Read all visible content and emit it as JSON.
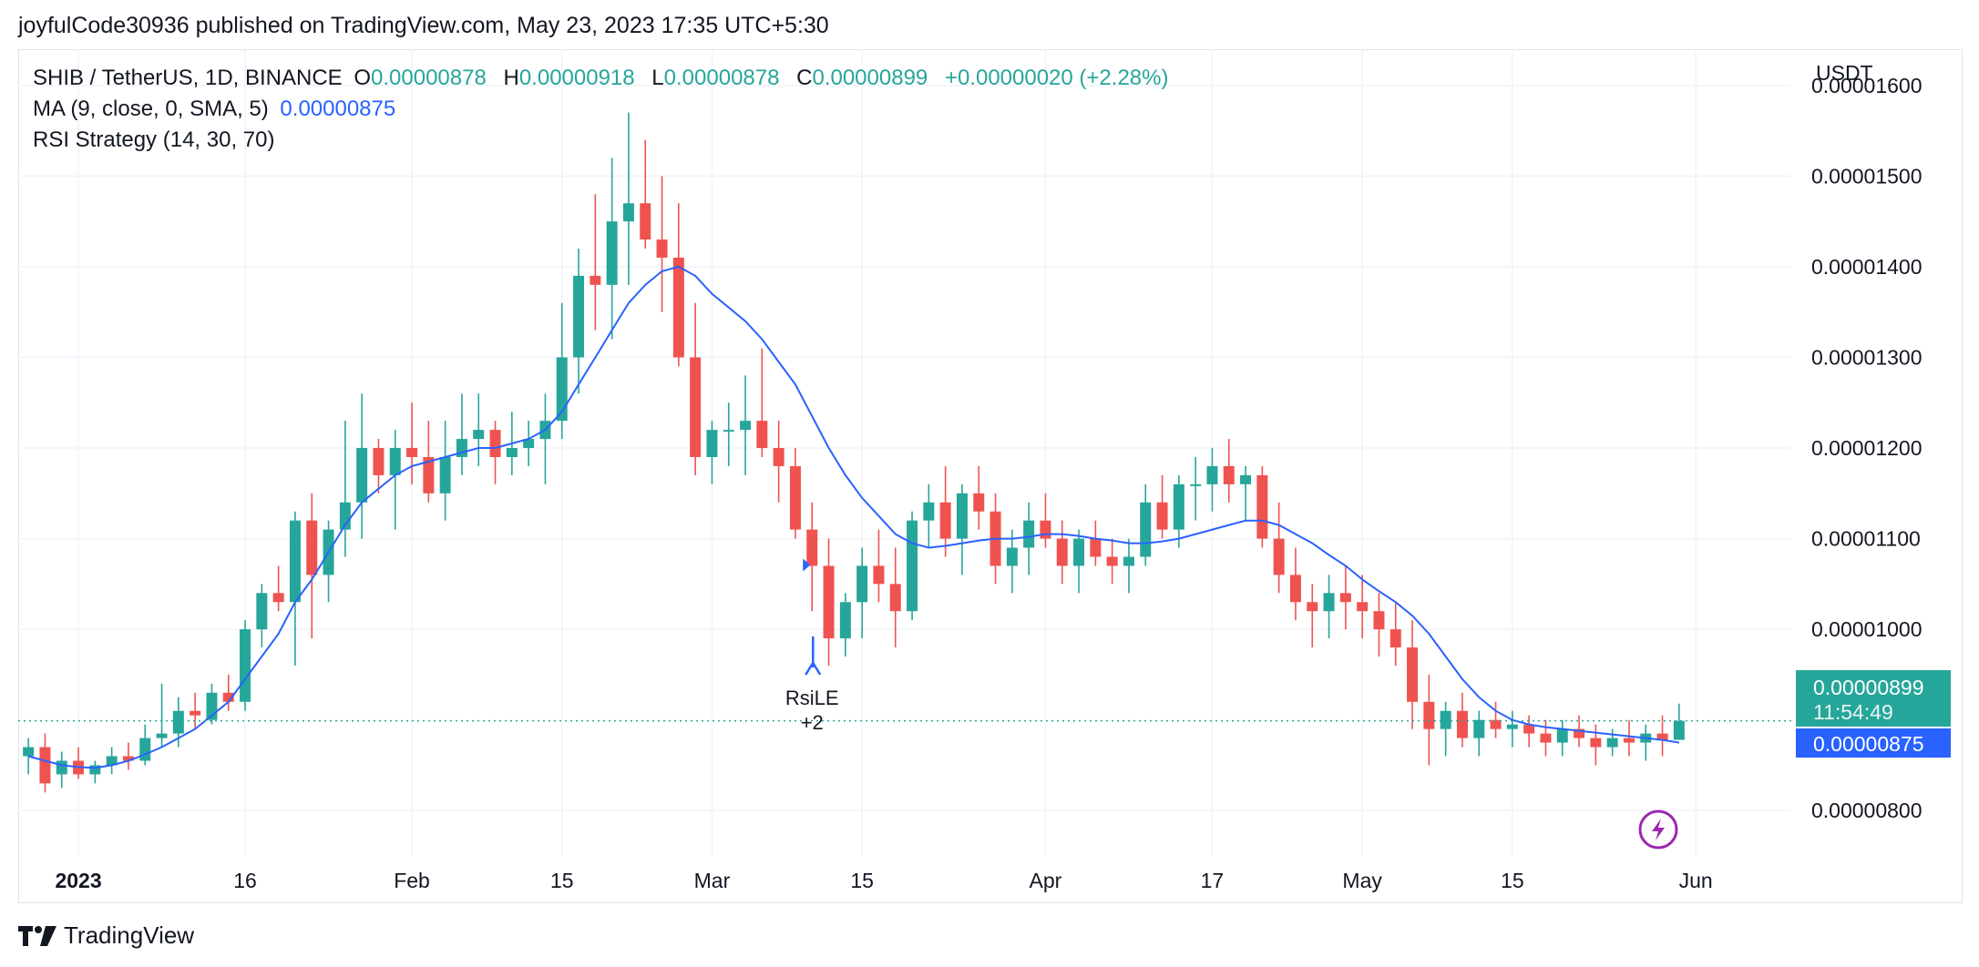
{
  "attribution": "joyfulCode30936 published on TradingView.com, May 23, 2023 17:35 UTC+5:30",
  "legend": {
    "symbol": "SHIB / TetherUS, 1D, BINANCE",
    "o_label": "O",
    "o_value": "0.00000878",
    "h_label": "H",
    "h_value": "0.00000918",
    "l_label": "L",
    "l_value": "0.00000878",
    "c_label": "C",
    "c_value": "0.00000899",
    "change": "+0.00000020 (+2.28%)",
    "ma_label": "MA (9, close, 0, SMA, 5)",
    "ma_value": "0.00000875",
    "strategy_label": "RSI Strategy (14, 30, 70)"
  },
  "footer_brand": "TradingView",
  "colors": {
    "up": "#26a69a",
    "down": "#ef5350",
    "ma": "#2962ff",
    "grid": "#f0f3fa"
  },
  "chart_data": {
    "type": "candlestick",
    "currency": "USDT",
    "ylim": [
      7.5e-06,
      1.64e-05
    ],
    "y_ticks": [
      "0.00001600",
      "0.00001500",
      "0.00001400",
      "0.00001300",
      "0.00001200",
      "0.00001100",
      "0.00001000",
      "0.00000800"
    ],
    "x_ticks": [
      {
        "label": "2023",
        "bold": true,
        "index": 3
      },
      {
        "label": "16",
        "index": 13
      },
      {
        "label": "Feb",
        "index": 23
      },
      {
        "label": "15",
        "index": 32
      },
      {
        "label": "Mar",
        "index": 41
      },
      {
        "label": "15",
        "index": 50
      },
      {
        "label": "Apr",
        "index": 61
      },
      {
        "label": "17",
        "index": 71
      },
      {
        "label": "May",
        "index": 80
      },
      {
        "label": "15",
        "index": 89
      },
      {
        "label": "Jun",
        "index": 100
      }
    ],
    "last_price_label": "0.00000899",
    "countdown": "11:54:49",
    "ma_last_label": "0.00000875",
    "last_price": 8.99e-06,
    "signal": {
      "index": 47,
      "label": "RsiLE",
      "qty": "+2",
      "price": 9.7e-06
    },
    "ohlc": [
      [
        8.6,
        8.8,
        8.4,
        8.7
      ],
      [
        8.7,
        8.85,
        8.2,
        8.3
      ],
      [
        8.4,
        8.65,
        8.25,
        8.55
      ],
      [
        8.55,
        8.7,
        8.35,
        8.4
      ],
      [
        8.4,
        8.55,
        8.3,
        8.5
      ],
      [
        8.5,
        8.7,
        8.4,
        8.6
      ],
      [
        8.6,
        8.75,
        8.45,
        8.55
      ],
      [
        8.55,
        8.95,
        8.5,
        8.8
      ],
      [
        8.8,
        9.4,
        8.7,
        8.85
      ],
      [
        8.85,
        9.25,
        8.7,
        9.1
      ],
      [
        9.1,
        9.3,
        8.9,
        9.05
      ],
      [
        9.0,
        9.4,
        8.95,
        9.3
      ],
      [
        9.3,
        9.5,
        9.1,
        9.2
      ],
      [
        9.2,
        10.1,
        9.1,
        10.0
      ],
      [
        10.0,
        10.5,
        9.8,
        10.4
      ],
      [
        10.4,
        10.7,
        10.2,
        10.3
      ],
      [
        10.3,
        11.3,
        9.6,
        11.2
      ],
      [
        11.2,
        11.5,
        9.9,
        10.6
      ],
      [
        10.6,
        11.2,
        10.3,
        11.1
      ],
      [
        11.1,
        12.3,
        10.8,
        11.4
      ],
      [
        11.4,
        12.6,
        11.0,
        12.0
      ],
      [
        12.0,
        12.1,
        11.5,
        11.7
      ],
      [
        11.7,
        12.2,
        11.1,
        12.0
      ],
      [
        12.0,
        12.5,
        11.6,
        11.9
      ],
      [
        11.9,
        12.3,
        11.4,
        11.5
      ],
      [
        11.5,
        12.3,
        11.2,
        11.9
      ],
      [
        11.9,
        12.6,
        11.7,
        12.1
      ],
      [
        12.1,
        12.6,
        11.8,
        12.2
      ],
      [
        12.2,
        12.3,
        11.6,
        11.9
      ],
      [
        11.9,
        12.4,
        11.7,
        12.0
      ],
      [
        12.0,
        12.3,
        11.8,
        12.1
      ],
      [
        12.1,
        12.6,
        11.6,
        12.3
      ],
      [
        12.3,
        13.6,
        12.1,
        13.0
      ],
      [
        13.0,
        14.2,
        12.6,
        13.9
      ],
      [
        13.9,
        14.8,
        13.3,
        13.8
      ],
      [
        13.8,
        15.2,
        13.2,
        14.5
      ],
      [
        14.5,
        15.7,
        13.8,
        14.7
      ],
      [
        14.7,
        15.4,
        14.2,
        14.3
      ],
      [
        14.3,
        15.0,
        13.5,
        14.1
      ],
      [
        14.1,
        14.7,
        12.9,
        13.0
      ],
      [
        13.0,
        13.6,
        11.7,
        11.9
      ],
      [
        11.9,
        12.3,
        11.6,
        12.2
      ],
      [
        12.2,
        12.5,
        11.8,
        12.2
      ],
      [
        12.2,
        12.8,
        11.7,
        12.3
      ],
      [
        12.3,
        13.1,
        11.9,
        12.0
      ],
      [
        12.0,
        12.3,
        11.4,
        11.8
      ],
      [
        11.8,
        12.0,
        11.0,
        11.1
      ],
      [
        11.1,
        11.4,
        10.2,
        10.7
      ],
      [
        10.7,
        11.0,
        9.6,
        9.9
      ],
      [
        9.9,
        10.4,
        9.7,
        10.3
      ],
      [
        10.3,
        10.9,
        9.9,
        10.7
      ],
      [
        10.7,
        11.1,
        10.3,
        10.5
      ],
      [
        10.5,
        10.9,
        9.8,
        10.2
      ],
      [
        10.2,
        11.3,
        10.1,
        11.2
      ],
      [
        11.2,
        11.6,
        10.9,
        11.4
      ],
      [
        11.4,
        11.8,
        10.8,
        11.0
      ],
      [
        11.0,
        11.6,
        10.6,
        11.5
      ],
      [
        11.5,
        11.8,
        11.1,
        11.3
      ],
      [
        11.3,
        11.5,
        10.5,
        10.7
      ],
      [
        10.7,
        11.1,
        10.4,
        10.9
      ],
      [
        10.9,
        11.4,
        10.6,
        11.2
      ],
      [
        11.2,
        11.5,
        10.9,
        11.0
      ],
      [
        11.0,
        11.2,
        10.5,
        10.7
      ],
      [
        10.7,
        11.1,
        10.4,
        11.0
      ],
      [
        11.0,
        11.2,
        10.7,
        10.8
      ],
      [
        10.8,
        11.0,
        10.5,
        10.7
      ],
      [
        10.7,
        11.0,
        10.4,
        10.8
      ],
      [
        10.8,
        11.6,
        10.7,
        11.4
      ],
      [
        11.4,
        11.7,
        11.0,
        11.1
      ],
      [
        11.1,
        11.7,
        10.9,
        11.6
      ],
      [
        11.6,
        11.9,
        11.2,
        11.6
      ],
      [
        11.6,
        12.0,
        11.3,
        11.8
      ],
      [
        11.8,
        12.1,
        11.4,
        11.6
      ],
      [
        11.6,
        11.8,
        11.2,
        11.7
      ],
      [
        11.7,
        11.8,
        10.9,
        11.0
      ],
      [
        11.0,
        11.4,
        10.4,
        10.6
      ],
      [
        10.6,
        10.9,
        10.1,
        10.3
      ],
      [
        10.3,
        10.5,
        9.8,
        10.2
      ],
      [
        10.2,
        10.6,
        9.9,
        10.4
      ],
      [
        10.4,
        10.7,
        10.0,
        10.3
      ],
      [
        10.3,
        10.6,
        9.9,
        10.2
      ],
      [
        10.2,
        10.4,
        9.7,
        10.0
      ],
      [
        10.0,
        10.3,
        9.6,
        9.8
      ],
      [
        9.8,
        10.1,
        8.9,
        9.2
      ],
      [
        9.2,
        9.5,
        8.5,
        8.9
      ],
      [
        8.9,
        9.2,
        8.6,
        9.1
      ],
      [
        9.1,
        9.3,
        8.7,
        8.8
      ],
      [
        8.8,
        9.1,
        8.6,
        9.0
      ],
      [
        9.0,
        9.2,
        8.8,
        8.9
      ],
      [
        8.9,
        9.1,
        8.7,
        8.95
      ],
      [
        8.95,
        9.05,
        8.7,
        8.85
      ],
      [
        8.85,
        9.0,
        8.6,
        8.75
      ],
      [
        8.75,
        9.0,
        8.6,
        8.9
      ],
      [
        8.9,
        9.05,
        8.7,
        8.8
      ],
      [
        8.8,
        8.95,
        8.5,
        8.7
      ],
      [
        8.7,
        8.9,
        8.6,
        8.8
      ],
      [
        8.8,
        9.0,
        8.6,
        8.75
      ],
      [
        8.75,
        8.95,
        8.55,
        8.85
      ],
      [
        8.85,
        9.05,
        8.6,
        8.78
      ],
      [
        8.78,
        9.18,
        8.78,
        8.99
      ]
    ],
    "ma": [
      8.6,
      8.55,
      8.5,
      8.48,
      8.47,
      8.5,
      8.55,
      8.62,
      8.7,
      8.8,
      8.9,
      9.05,
      9.2,
      9.45,
      9.7,
      9.95,
      10.3,
      10.55,
      10.85,
      11.15,
      11.4,
      11.55,
      11.7,
      11.8,
      11.85,
      11.9,
      11.95,
      12.0,
      12.0,
      12.05,
      12.1,
      12.2,
      12.4,
      12.7,
      13.0,
      13.3,
      13.6,
      13.8,
      13.95,
      14.0,
      13.9,
      13.7,
      13.55,
      13.4,
      13.2,
      12.95,
      12.7,
      12.35,
      12.0,
      11.7,
      11.45,
      11.25,
      11.05,
      10.95,
      10.9,
      10.92,
      10.95,
      10.98,
      11.0,
      11.0,
      11.02,
      11.05,
      11.05,
      11.03,
      11.0,
      10.98,
      10.95,
      10.95,
      10.97,
      11.0,
      11.05,
      11.1,
      11.15,
      11.2,
      11.2,
      11.15,
      11.05,
      10.95,
      10.82,
      10.7,
      10.55,
      10.42,
      10.3,
      10.15,
      9.95,
      9.7,
      9.45,
      9.25,
      9.1,
      9.0,
      8.95,
      8.92,
      8.9,
      8.88,
      8.86,
      8.84,
      8.82,
      8.8,
      8.78,
      8.75
    ]
  }
}
